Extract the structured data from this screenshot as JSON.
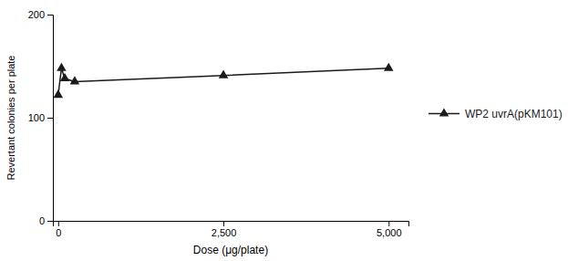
{
  "chart_data": {
    "type": "line",
    "x": [
      0,
      50,
      100,
      250,
      2500,
      5000
    ],
    "series": [
      {
        "name": "WP2 uvrA(pKM101)",
        "color": "#1a1a1a",
        "marker": "triangle",
        "values": [
          122,
          148,
          138,
          135,
          141,
          148
        ]
      }
    ],
    "xlim": [
      -80,
      5300
    ],
    "xticks": [
      0,
      {
        "value": 2500,
        "label": "2,500"
      },
      {
        "value": 5000,
        "label": "5,000"
      }
    ],
    "ylim": [
      0,
      200
    ],
    "yticks": [
      0,
      100,
      200
    ],
    "xlabel": "Dose (μg/plate)",
    "ylabel": "Revertant colonies per plate",
    "legend": "right",
    "grid": false
  }
}
